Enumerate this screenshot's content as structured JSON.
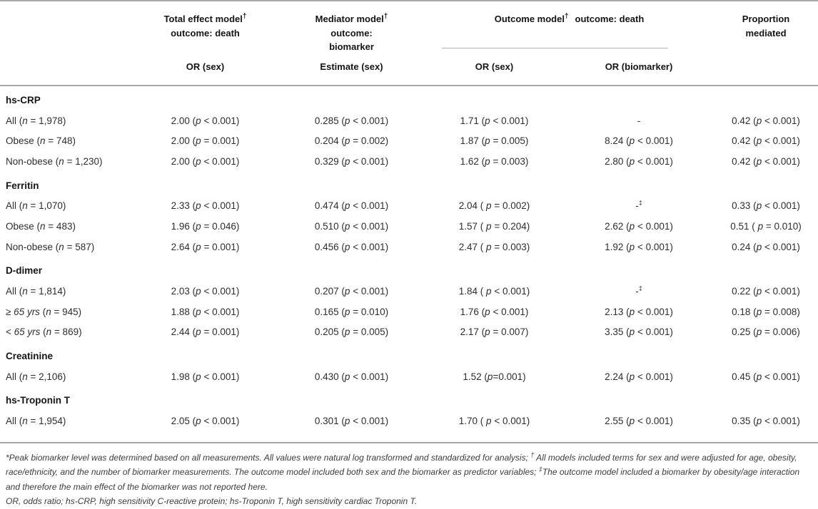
{
  "styles": {
    "rule_color": "#a8a8a8",
    "text_color": "#2e2e2e"
  },
  "table": {
    "header": {
      "total": {
        "title": "Total effect model",
        "dagger": "†",
        "subtitle": "outcome: death",
        "measure": "OR (sex)"
      },
      "mediator": {
        "title": "Mediator model",
        "dagger": "†",
        "sub1": "outcome:",
        "sub2": "biomarker",
        "measure": "Estimate (sex)"
      },
      "outcome": {
        "title": "Outcome model",
        "dagger": "†",
        "subtitle": "outcome: death",
        "measure_sex": "OR (sex)",
        "measure_biomarker": "OR (biomarker)"
      },
      "proportion": {
        "line1": "Proportion",
        "line2": "mediated"
      }
    },
    "sections": [
      {
        "heading": "hs-CRP",
        "rows": [
          {
            "label": "All (n = 1,978)",
            "total_effect": "2.00 (p < 0.001)",
            "mediator": "0.285 (p < 0.001)",
            "or_sex": "1.71 (p < 0.001)",
            "or_biomarker": "-",
            "proportion": "0.42 (p < 0.001)"
          },
          {
            "label": "Obese (n = 748)",
            "total_effect": "2.00 (p = 0.001)",
            "mediator": "0.204 (p = 0.002)",
            "or_sex": "1.87 (p = 0.005)",
            "or_biomarker": "8.24 (p < 0.001)",
            "proportion": "0.42 (p < 0.001)"
          },
          {
            "label": "Non-obese (n = 1,230)",
            "total_effect": "2.00 (p < 0.001)",
            "mediator": "0.329 (p < 0.001)",
            "or_sex": "1.62 (p = 0.003)",
            "or_biomarker": "2.80 (p < 0.001)",
            "proportion": "0.42 (p < 0.001)"
          }
        ]
      },
      {
        "heading": "Ferritin",
        "rows": [
          {
            "label": "All (n = 1,070)",
            "total_effect": "2.33 (p < 0.001)",
            "mediator": "0.474 (p < 0.001)",
            "or_sex": "2.04 ( p = 0.002)",
            "or_biomarker": "-‡",
            "proportion": "0.33 (p < 0.001)"
          },
          {
            "label": "Obese (n = 483)",
            "total_effect": "1.96 (p = 0.046)",
            "mediator": "0.510 (p < 0.001)",
            "or_sex": "1.57 ( p = 0.204)",
            "or_biomarker": "2.62 (p < 0.001)",
            "proportion": "0.51 ( p = 0.010)"
          },
          {
            "label": "Non-obese (n = 587)",
            "total_effect": "2.64 (p = 0.001)",
            "mediator": "0.456 (p < 0.001)",
            "or_sex": "2.47 ( p = 0.003)",
            "or_biomarker": "1.92 (p < 0.001)",
            "proportion": "0.24 (p < 0.001)"
          }
        ]
      },
      {
        "heading": "D-dimer",
        "rows": [
          {
            "label": "All (n = 1,814)",
            "total_effect": "2.03 (p < 0.001)",
            "mediator": "0.207 (p < 0.001)",
            "or_sex": "1.84 ( p < 0.001)",
            "or_biomarker": "-‡",
            "proportion": "0.22 (p < 0.001)"
          },
          {
            "label": "≥ 65 yrs (n = 945)",
            "total_effect": "1.88 (p < 0.001)",
            "mediator": "0.165 (p = 0.010)",
            "or_sex": "1.76 (p < 0.001)",
            "or_biomarker": "2.13 (p < 0.001)",
            "proportion": "0.18 (p = 0.008)"
          },
          {
            "label": "< 65 yrs (n = 869)",
            "total_effect": "2.44 (p = 0.001)",
            "mediator": "0.205 (p = 0.005)",
            "or_sex": "2.17 (p = 0.007)",
            "or_biomarker": "3.35 (p < 0.001)",
            "proportion": "0.25 (p = 0.006)"
          }
        ]
      },
      {
        "heading": "Creatinine",
        "rows": [
          {
            "label": "All (n = 2,106)",
            "total_effect": "1.98 (p < 0.001)",
            "mediator": "0.430 (p < 0.001)",
            "or_sex": "1.52 (p=0.001)",
            "or_biomarker": "2.24 (p < 0.001)",
            "proportion": "0.45 (p < 0.001)"
          }
        ]
      },
      {
        "heading": "hs-Troponin T",
        "rows": [
          {
            "label": "All (n = 1,954)",
            "total_effect": "2.05 (p < 0.001)",
            "mediator": "0.301 (p < 0.001)",
            "or_sex": "1.70 ( p < 0.001)",
            "or_biomarker": "2.55 (p < 0.001)",
            "proportion": "0.35 (p < 0.001)"
          }
        ]
      }
    ],
    "footnotes": {
      "note1": "*Peak biomarker level was determined based on all measurements. All values were natural log transformed and standardized for analysis; † All models included terms for sex and were adjusted for age, obesity, race/ethnicity, and the number of biomarker measurements. The outcome model included both sex and the biomarker as predictor variables; ‡The outcome model included a biomarker by obesity/age interaction and therefore the main effect of the biomarker was not reported here.",
      "note2": "OR, odds ratio; hs-CRP, high sensitivity C-reactive protein; hs-Troponin T, high sensitivity cardiac Troponin T."
    }
  }
}
